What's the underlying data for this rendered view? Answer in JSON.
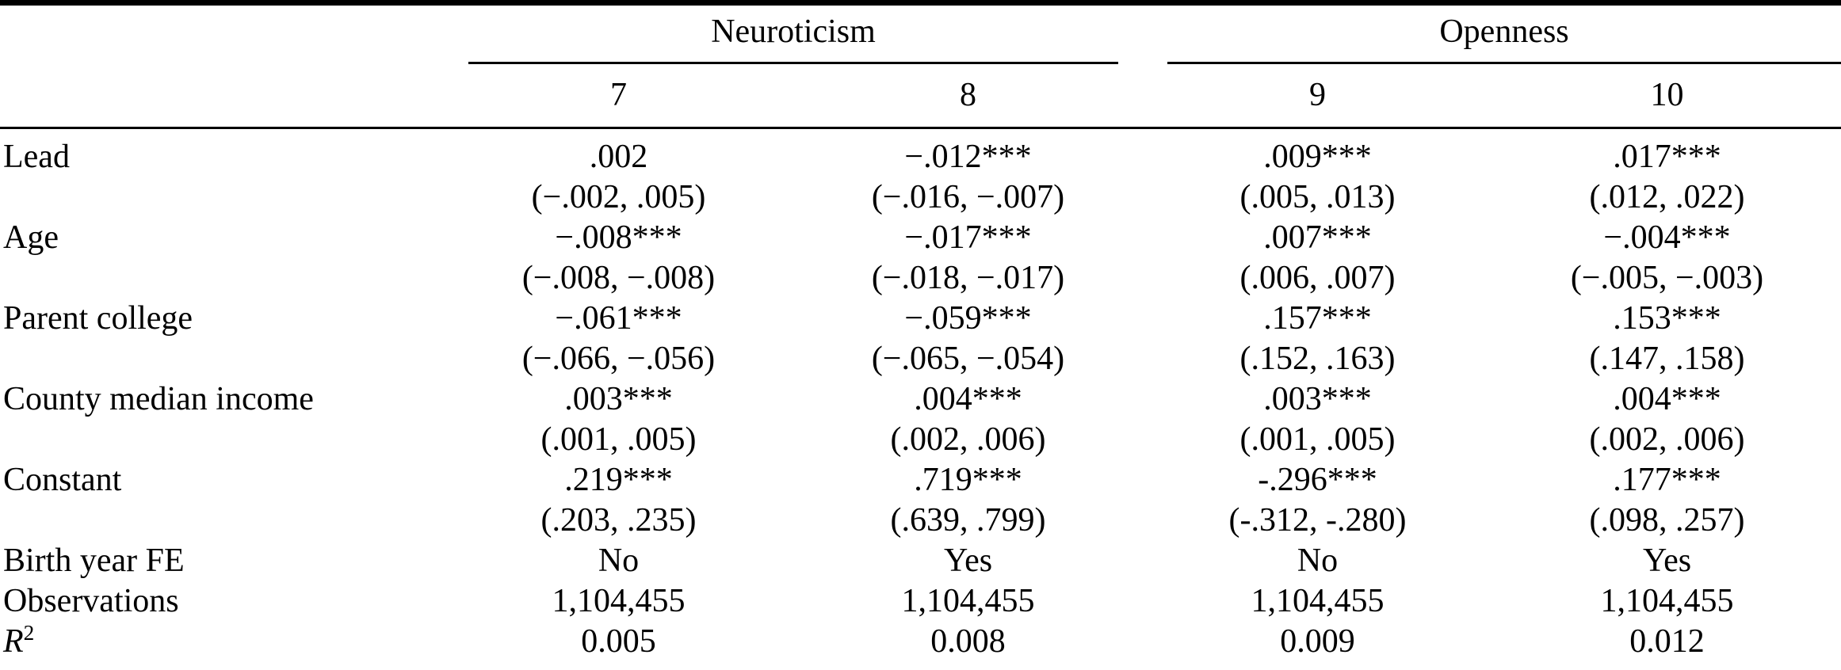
{
  "table": {
    "header": {
      "groups": [
        {
          "label": "Neuroticism",
          "columns": [
            "7",
            "8"
          ]
        },
        {
          "label": "Openness",
          "columns": [
            "9",
            "10"
          ]
        }
      ],
      "cols": [
        "7",
        "8",
        "9",
        "10"
      ]
    },
    "coef_rows": [
      {
        "label": "Lead",
        "est": [
          ".002",
          "−.012***",
          ".009***",
          ".017***"
        ],
        "ci": [
          "(−.002, .005)",
          "(−.016, −.007)",
          "(.005, .013)",
          "(.012, .022)"
        ]
      },
      {
        "label": "Age",
        "est": [
          "−.008***",
          "−.017***",
          ".007***",
          "−.004***"
        ],
        "ci": [
          "(−.008, −.008)",
          "(−.018, −.017)",
          "(.006, .007)",
          "(−.005, −.003)"
        ]
      },
      {
        "label": "Parent college",
        "est": [
          "−.061***",
          "−.059***",
          ".157***",
          ".153***"
        ],
        "ci": [
          "(−.066, −.056)",
          "(−.065, −.054)",
          "(.152, .163)",
          "(.147, .158)"
        ]
      },
      {
        "label": "County median income",
        "est": [
          ".003***",
          ".004***",
          ".003***",
          ".004***"
        ],
        "ci": [
          "(.001, .005)",
          "(.002, .006)",
          "(.001, .005)",
          "(.002, .006)"
        ]
      },
      {
        "label": "Constant",
        "est": [
          ".219***",
          ".719***",
          "-.296***",
          ".177***"
        ],
        "ci": [
          "(.203, .235)",
          "(.639, .799)",
          "(-.312, -.280)",
          "(.098, .257)"
        ]
      }
    ],
    "info_rows": [
      {
        "label": "Birth year FE",
        "values": [
          "No",
          "Yes",
          "No",
          "Yes"
        ]
      },
      {
        "label": "Observations",
        "values": [
          "1,104,455",
          "1,104,455",
          "1,104,455",
          "1,104,455"
        ]
      },
      {
        "label": "R",
        "label_sup": "2",
        "values": [
          "0.005",
          "0.008",
          "0.009",
          "0.012"
        ]
      }
    ]
  }
}
